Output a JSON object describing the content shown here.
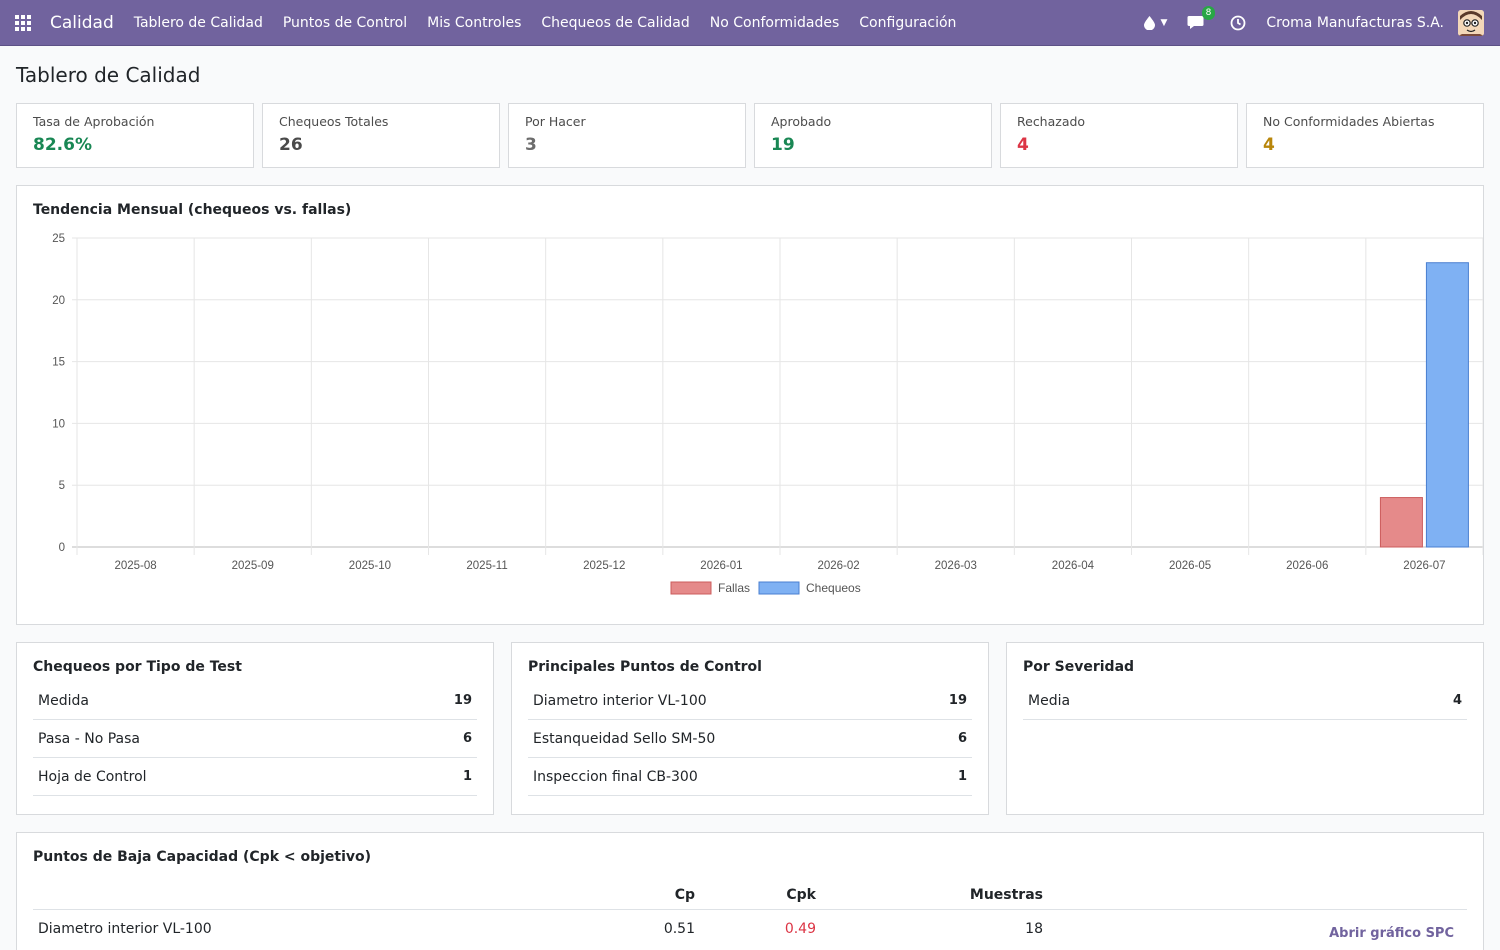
{
  "nav": {
    "brand": "Calidad",
    "menu": [
      "Tablero de Calidad",
      "Puntos de Control",
      "Mis Controles",
      "Chequeos de Calidad",
      "No Conformidades",
      "Configuración"
    ],
    "messages_badge": "8",
    "company": "Croma Manufacturas S.A.",
    "icons": [
      "apps-grid-icon",
      "drop-icon",
      "chat-icon",
      "clock-icon"
    ]
  },
  "page": {
    "title": "Tablero de Calidad"
  },
  "kpis": [
    {
      "label": "Tasa de Aprobación",
      "value": "82.6%",
      "color": "#198754"
    },
    {
      "label": "Chequeos Totales",
      "value": "26",
      "color": "#4a4a4a"
    },
    {
      "label": "Por Hacer",
      "value": "3",
      "color": "#6c6c6c"
    },
    {
      "label": "Aprobado",
      "value": "19",
      "color": "#198754"
    },
    {
      "label": "Rechazado",
      "value": "4",
      "color": "#dc3545"
    },
    {
      "label": "No Conformidades Abiertas",
      "value": "4",
      "color": "#b8860b"
    }
  ],
  "trend": {
    "title": "Tendencia Mensual (chequeos vs. fallas)"
  },
  "chart_data": {
    "type": "bar",
    "title": "Tendencia Mensual (chequeos vs. fallas)",
    "categories": [
      "2025-08",
      "2025-09",
      "2025-10",
      "2025-11",
      "2025-12",
      "2026-01",
      "2026-02",
      "2026-03",
      "2026-04",
      "2026-05",
      "2026-06",
      "2026-07"
    ],
    "series": [
      {
        "name": "Fallas",
        "values": [
          0,
          0,
          0,
          0,
          0,
          0,
          0,
          0,
          0,
          0,
          0,
          4
        ],
        "color": "#e58a8a",
        "border": "#cc5c5c"
      },
      {
        "name": "Chequeos",
        "values": [
          0,
          0,
          0,
          0,
          0,
          0,
          0,
          0,
          0,
          0,
          0,
          23
        ],
        "color": "#7fb1f3",
        "border": "#4a7fd0"
      }
    ],
    "ylim": [
      0,
      25
    ],
    "yticks": [
      0,
      5,
      10,
      15,
      20,
      25
    ],
    "grid": true,
    "legend": "bottom"
  },
  "by_type": {
    "title": "Chequeos por Tipo de Test",
    "rows": [
      {
        "label": "Medida",
        "value": "19"
      },
      {
        "label": "Pasa - No Pasa",
        "value": "6"
      },
      {
        "label": "Hoja de Control",
        "value": "1"
      }
    ]
  },
  "top_points": {
    "title": "Principales Puntos de Control",
    "rows": [
      {
        "label": "Diametro interior VL-100",
        "value": "19"
      },
      {
        "label": "Estanqueidad Sello SM-50",
        "value": "6"
      },
      {
        "label": "Inspeccion final CB-300",
        "value": "1"
      }
    ]
  },
  "severity": {
    "title": "Por Severidad",
    "rows": [
      {
        "label": "Media",
        "value": "4"
      }
    ]
  },
  "low_capacity": {
    "title": "Puntos de Baja Capacidad (Cpk < objetivo)",
    "headers": {
      "cp": "Cp",
      "cpk": "Cpk",
      "samples": "Muestras"
    },
    "rows": [
      {
        "name": "Diametro interior VL-100",
        "cp": "0.51",
        "cpk": "0.49",
        "samples": "18",
        "action": "Abrir gráfico SPC"
      }
    ],
    "cpk_color": "#dc3545"
  }
}
